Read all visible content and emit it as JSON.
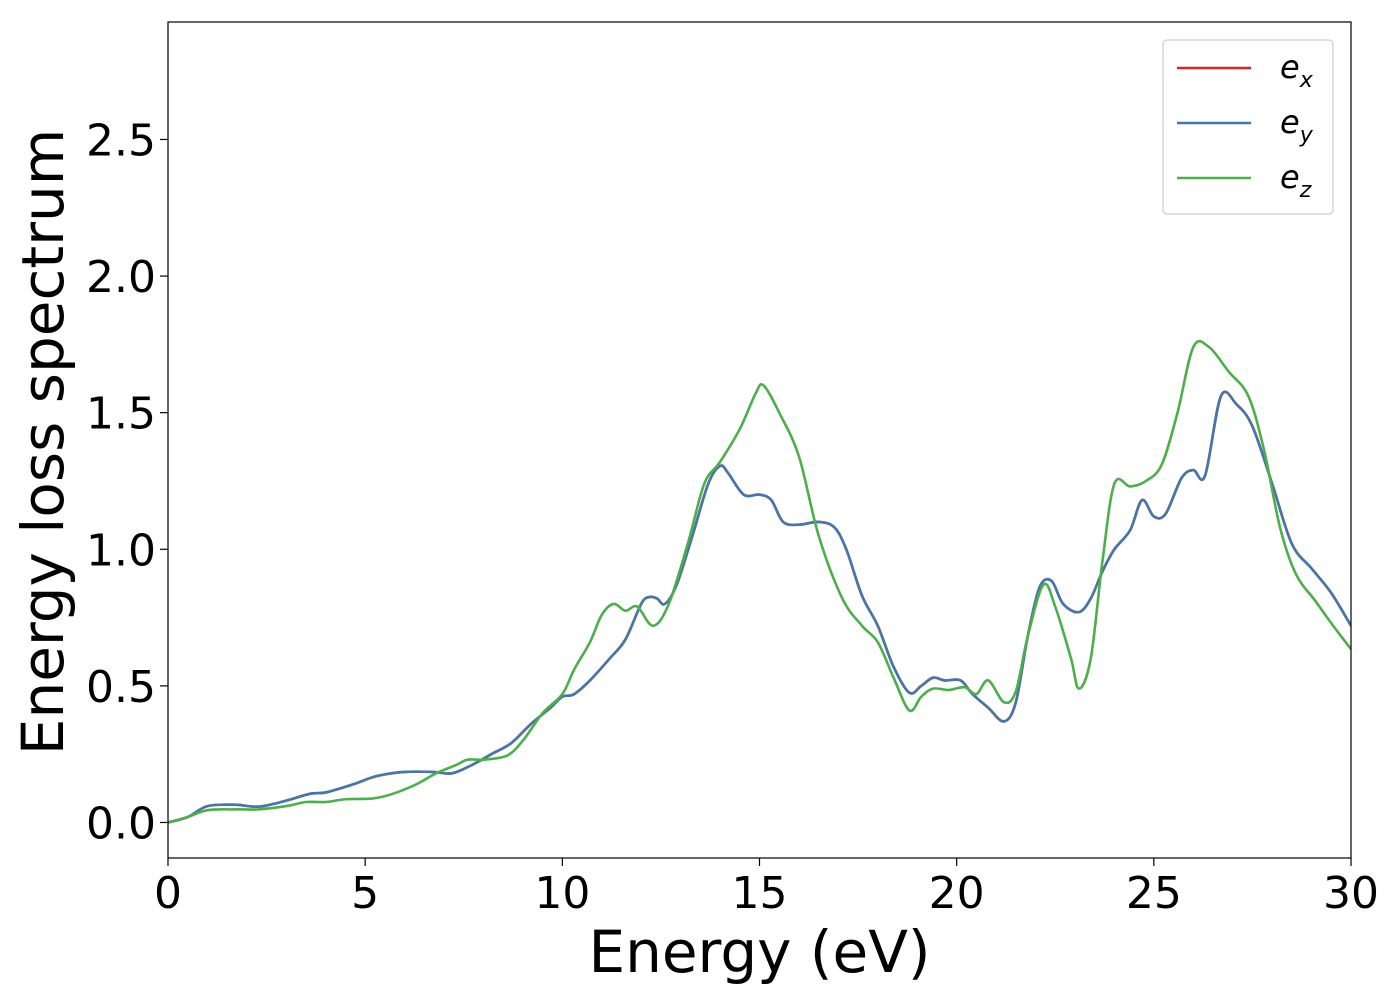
{
  "chart_data": {
    "type": "line",
    "title": "",
    "xlabel": "Energy (eV)",
    "ylabel": "Energy loss spectrum",
    "xlim": [
      0,
      30
    ],
    "ylim": [
      -0.13,
      2.93
    ],
    "xticks": [
      0,
      5,
      10,
      15,
      20,
      25,
      30
    ],
    "xtick_labels": [
      "0",
      "5",
      "10",
      "15",
      "20",
      "25",
      "30"
    ],
    "yticks": [
      0.0,
      0.5,
      1.0,
      1.5,
      2.0,
      2.5
    ],
    "ytick_labels": [
      "0.0",
      "0.5",
      "1.0",
      "1.5",
      "2.0",
      "2.5"
    ],
    "grid": false,
    "legend_position": "top-right",
    "series": [
      {
        "name": "e",
        "subscript": "x",
        "color": "#d62728",
        "points": [
          [
            0,
            0
          ],
          [
            0.5,
            0.02
          ],
          [
            1,
            0.06
          ],
          [
            1.7,
            0.065
          ],
          [
            2.3,
            0.058
          ],
          [
            3,
            0.08
          ],
          [
            3.6,
            0.105
          ],
          [
            4,
            0.11
          ],
          [
            4.7,
            0.14
          ],
          [
            5.3,
            0.17
          ],
          [
            6,
            0.185
          ],
          [
            6.7,
            0.185
          ],
          [
            7.2,
            0.18
          ],
          [
            7.7,
            0.21
          ],
          [
            8.2,
            0.25
          ],
          [
            8.7,
            0.29
          ],
          [
            9.2,
            0.36
          ],
          [
            9.7,
            0.42
          ],
          [
            10,
            0.46
          ],
          [
            10.3,
            0.47
          ],
          [
            10.7,
            0.52
          ],
          [
            11.2,
            0.6
          ],
          [
            11.6,
            0.67
          ],
          [
            12,
            0.8
          ],
          [
            12.2,
            0.825
          ],
          [
            12.4,
            0.82
          ],
          [
            12.6,
            0.8
          ],
          [
            12.9,
            0.87
          ],
          [
            13.3,
            1.05
          ],
          [
            13.7,
            1.24
          ],
          [
            14,
            1.305
          ],
          [
            14.2,
            1.28
          ],
          [
            14.6,
            1.2
          ],
          [
            15,
            1.2
          ],
          [
            15.3,
            1.18
          ],
          [
            15.6,
            1.1
          ],
          [
            16,
            1.09
          ],
          [
            16.5,
            1.1
          ],
          [
            16.9,
            1.08
          ],
          [
            17.2,
            1.0
          ],
          [
            17.6,
            0.83
          ],
          [
            18,
            0.72
          ],
          [
            18.4,
            0.57
          ],
          [
            18.8,
            0.475
          ],
          [
            19.1,
            0.5
          ],
          [
            19.4,
            0.53
          ],
          [
            19.7,
            0.52
          ],
          [
            20.1,
            0.52
          ],
          [
            20.4,
            0.47
          ],
          [
            20.8,
            0.42
          ],
          [
            21.2,
            0.37
          ],
          [
            21.5,
            0.44
          ],
          [
            21.8,
            0.68
          ],
          [
            22.1,
            0.86
          ],
          [
            22.4,
            0.885
          ],
          [
            22.7,
            0.8
          ],
          [
            23.1,
            0.77
          ],
          [
            23.4,
            0.82
          ],
          [
            23.7,
            0.92
          ],
          [
            24,
            1.0
          ],
          [
            24.4,
            1.07
          ],
          [
            24.7,
            1.18
          ],
          [
            25,
            1.12
          ],
          [
            25.3,
            1.13
          ],
          [
            25.7,
            1.26
          ],
          [
            26,
            1.29
          ],
          [
            26.3,
            1.27
          ],
          [
            26.7,
            1.56
          ],
          [
            27.1,
            1.53
          ],
          [
            27.5,
            1.45
          ],
          [
            28,
            1.24
          ],
          [
            28.5,
            1.02
          ],
          [
            29,
            0.93
          ],
          [
            29.5,
            0.84
          ],
          [
            30,
            0.72
          ]
        ]
      },
      {
        "name": "e",
        "subscript": "y",
        "color": "#4477aa",
        "points": [
          [
            0,
            0
          ],
          [
            0.5,
            0.02
          ],
          [
            1,
            0.06
          ],
          [
            1.7,
            0.065
          ],
          [
            2.3,
            0.058
          ],
          [
            3,
            0.08
          ],
          [
            3.6,
            0.105
          ],
          [
            4,
            0.11
          ],
          [
            4.7,
            0.14
          ],
          [
            5.3,
            0.17
          ],
          [
            6,
            0.185
          ],
          [
            6.7,
            0.185
          ],
          [
            7.2,
            0.18
          ],
          [
            7.7,
            0.21
          ],
          [
            8.2,
            0.25
          ],
          [
            8.7,
            0.29
          ],
          [
            9.2,
            0.36
          ],
          [
            9.7,
            0.42
          ],
          [
            10,
            0.46
          ],
          [
            10.3,
            0.47
          ],
          [
            10.7,
            0.52
          ],
          [
            11.2,
            0.6
          ],
          [
            11.6,
            0.67
          ],
          [
            12,
            0.8
          ],
          [
            12.2,
            0.825
          ],
          [
            12.4,
            0.82
          ],
          [
            12.6,
            0.8
          ],
          [
            12.9,
            0.87
          ],
          [
            13.3,
            1.05
          ],
          [
            13.7,
            1.24
          ],
          [
            14,
            1.305
          ],
          [
            14.2,
            1.28
          ],
          [
            14.6,
            1.2
          ],
          [
            15,
            1.2
          ],
          [
            15.3,
            1.18
          ],
          [
            15.6,
            1.1
          ],
          [
            16,
            1.09
          ],
          [
            16.5,
            1.1
          ],
          [
            16.9,
            1.08
          ],
          [
            17.2,
            1.0
          ],
          [
            17.6,
            0.83
          ],
          [
            18,
            0.72
          ],
          [
            18.4,
            0.57
          ],
          [
            18.8,
            0.475
          ],
          [
            19.1,
            0.5
          ],
          [
            19.4,
            0.53
          ],
          [
            19.7,
            0.52
          ],
          [
            20.1,
            0.52
          ],
          [
            20.4,
            0.47
          ],
          [
            20.8,
            0.42
          ],
          [
            21.2,
            0.37
          ],
          [
            21.5,
            0.44
          ],
          [
            21.8,
            0.68
          ],
          [
            22.1,
            0.86
          ],
          [
            22.4,
            0.885
          ],
          [
            22.7,
            0.8
          ],
          [
            23.1,
            0.77
          ],
          [
            23.4,
            0.82
          ],
          [
            23.7,
            0.92
          ],
          [
            24,
            1.0
          ],
          [
            24.4,
            1.07
          ],
          [
            24.7,
            1.18
          ],
          [
            25,
            1.12
          ],
          [
            25.3,
            1.13
          ],
          [
            25.7,
            1.26
          ],
          [
            26,
            1.29
          ],
          [
            26.3,
            1.27
          ],
          [
            26.7,
            1.56
          ],
          [
            27.1,
            1.53
          ],
          [
            27.5,
            1.45
          ],
          [
            28,
            1.24
          ],
          [
            28.5,
            1.02
          ],
          [
            29,
            0.93
          ],
          [
            29.5,
            0.84
          ],
          [
            30,
            0.72
          ]
        ]
      },
      {
        "name": "e",
        "subscript": "z",
        "color": "#4daf4a",
        "points": [
          [
            0,
            0
          ],
          [
            0.5,
            0.02
          ],
          [
            1,
            0.045
          ],
          [
            1.7,
            0.048
          ],
          [
            2.3,
            0.048
          ],
          [
            3,
            0.06
          ],
          [
            3.5,
            0.075
          ],
          [
            4,
            0.075
          ],
          [
            4.5,
            0.085
          ],
          [
            5.2,
            0.088
          ],
          [
            5.7,
            0.105
          ],
          [
            6.3,
            0.14
          ],
          [
            6.8,
            0.18
          ],
          [
            7.3,
            0.21
          ],
          [
            7.6,
            0.23
          ],
          [
            8,
            0.23
          ],
          [
            8.6,
            0.245
          ],
          [
            9,
            0.3
          ],
          [
            9.5,
            0.4
          ],
          [
            10,
            0.47
          ],
          [
            10.3,
            0.56
          ],
          [
            10.7,
            0.66
          ],
          [
            11,
            0.76
          ],
          [
            11.3,
            0.8
          ],
          [
            11.6,
            0.775
          ],
          [
            11.9,
            0.79
          ],
          [
            12.3,
            0.72
          ],
          [
            12.7,
            0.8
          ],
          [
            13.2,
            1.03
          ],
          [
            13.6,
            1.24
          ],
          [
            14,
            1.32
          ],
          [
            14.5,
            1.44
          ],
          [
            14.9,
            1.57
          ],
          [
            15.1,
            1.6
          ],
          [
            15.5,
            1.5
          ],
          [
            16,
            1.34
          ],
          [
            16.5,
            1.05
          ],
          [
            17.1,
            0.82
          ],
          [
            17.6,
            0.72
          ],
          [
            18,
            0.66
          ],
          [
            18.4,
            0.53
          ],
          [
            18.8,
            0.41
          ],
          [
            19.1,
            0.46
          ],
          [
            19.4,
            0.49
          ],
          [
            19.8,
            0.485
          ],
          [
            20.2,
            0.495
          ],
          [
            20.5,
            0.47
          ],
          [
            20.8,
            0.52
          ],
          [
            21.2,
            0.44
          ],
          [
            21.5,
            0.48
          ],
          [
            21.8,
            0.68
          ],
          [
            22.2,
            0.87
          ],
          [
            22.5,
            0.79
          ],
          [
            22.9,
            0.6
          ],
          [
            23.1,
            0.49
          ],
          [
            23.4,
            0.6
          ],
          [
            23.7,
            0.96
          ],
          [
            24,
            1.24
          ],
          [
            24.4,
            1.23
          ],
          [
            24.8,
            1.25
          ],
          [
            25.2,
            1.31
          ],
          [
            25.6,
            1.5
          ],
          [
            26,
            1.74
          ],
          [
            26.4,
            1.74
          ],
          [
            26.9,
            1.65
          ],
          [
            27.4,
            1.56
          ],
          [
            27.8,
            1.36
          ],
          [
            28.2,
            1.08
          ],
          [
            28.6,
            0.91
          ],
          [
            29.1,
            0.81
          ],
          [
            29.6,
            0.71
          ],
          [
            30,
            0.635
          ]
        ]
      }
    ]
  }
}
